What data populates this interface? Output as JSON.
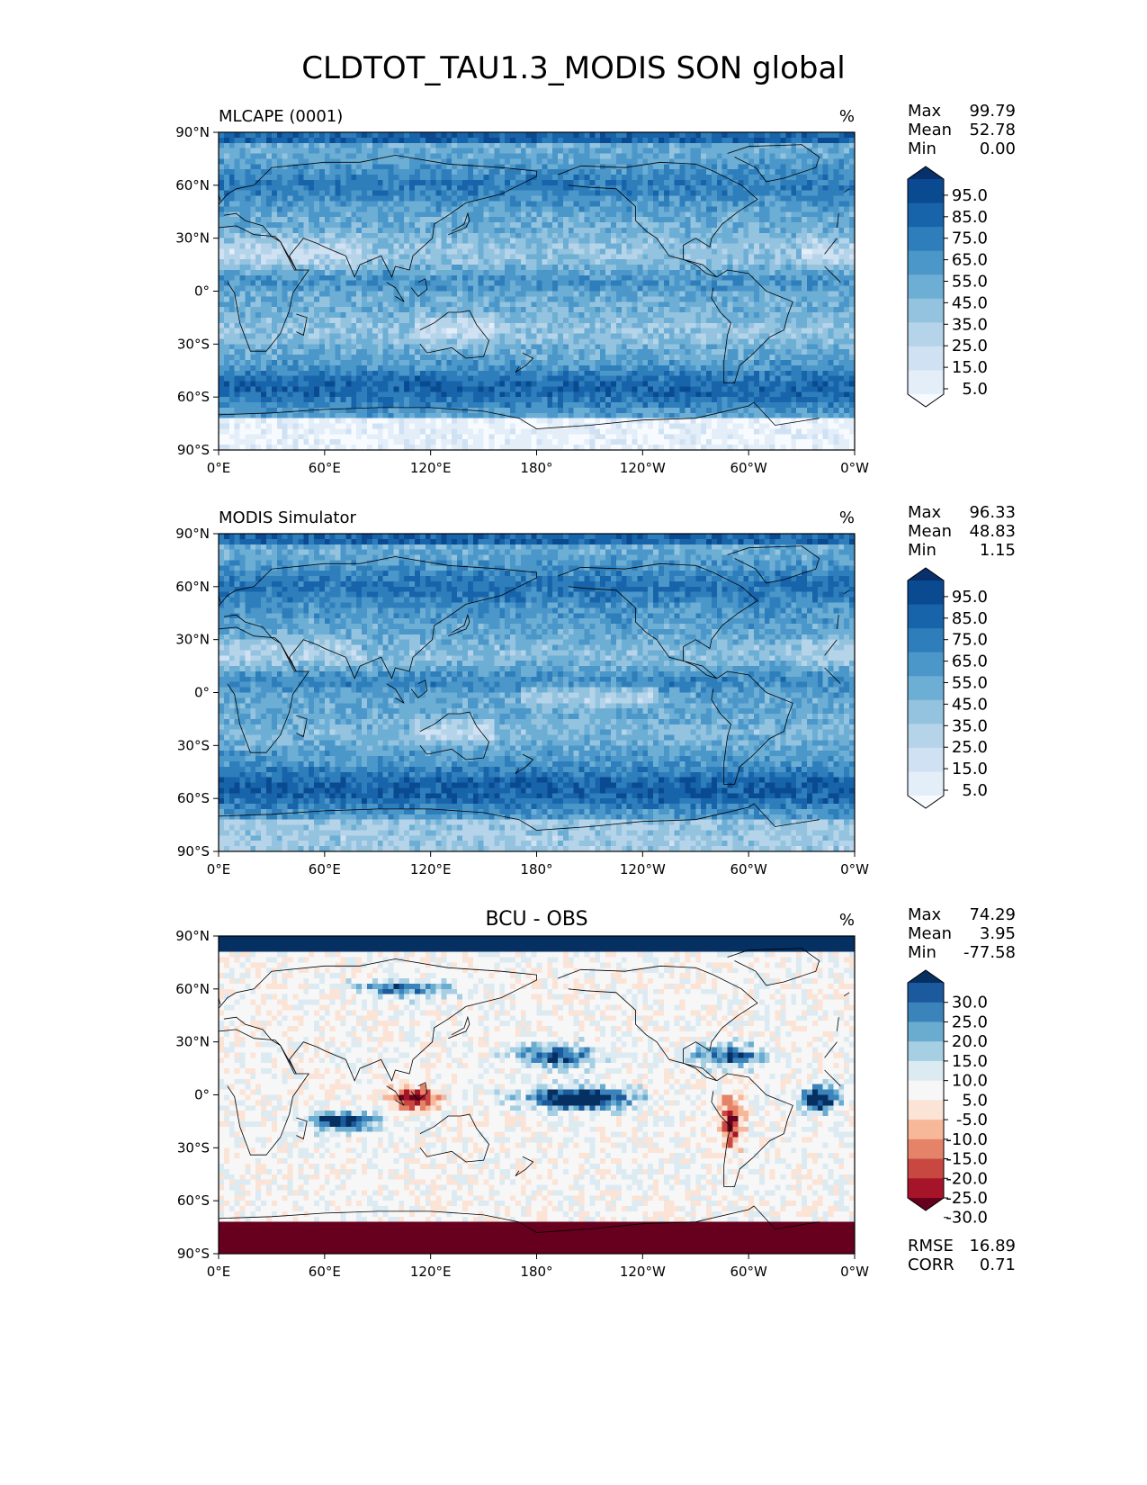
{
  "figure": {
    "title": "CLDTOT_TAU1.3_MODIS SON global"
  },
  "colors": {
    "blues": [
      "#f7fbff",
      "#e3eef9",
      "#cfe1f2",
      "#b5d4e9",
      "#93c3df",
      "#6daed5",
      "#4b97c9",
      "#2f7ebc",
      "#1864aa",
      "#0a4a90",
      "#08306b"
    ],
    "diverging": [
      "#67001f",
      "#a51429",
      "#c94741",
      "#e58368",
      "#f7b799",
      "#fbe3d6",
      "#f7f7f7",
      "#dceaf2",
      "#a7cfe4",
      "#6aacd0",
      "#3a84bb",
      "#1b5a9c",
      "#053061"
    ],
    "coastline": "#000000"
  },
  "chart_data": [
    {
      "type": "heatmap",
      "title": "MLCAPE (0001)",
      "units": "%",
      "xticks": [
        "0°E",
        "60°E",
        "120°E",
        "180°",
        "120°W",
        "60°W",
        "0°W"
      ],
      "yticks": [
        "90°N",
        "60°N",
        "30°N",
        "0°",
        "30°S",
        "60°S",
        "90°S"
      ],
      "xlim": [
        0,
        360
      ],
      "ylim": [
        -90,
        90
      ],
      "stats": [
        {
          "label": "Max",
          "value": "99.79"
        },
        {
          "label": "Mean",
          "value": "52.78"
        },
        {
          "label": "Min",
          "value": "0.00"
        }
      ],
      "colorbar": {
        "palette": "blues",
        "extend": "both",
        "labels": [
          "95.0",
          "85.0",
          "75.0",
          "65.0",
          "55.0",
          "45.0",
          "35.0",
          "25.0",
          "15.0",
          "5.0"
        ]
      }
    },
    {
      "type": "heatmap",
      "title": "MODIS Simulator",
      "units": "%",
      "xticks": [
        "0°E",
        "60°E",
        "120°E",
        "180°",
        "120°W",
        "60°W",
        "0°W"
      ],
      "yticks": [
        "90°N",
        "60°N",
        "30°N",
        "0°",
        "30°S",
        "60°S",
        "90°S"
      ],
      "xlim": [
        0,
        360
      ],
      "ylim": [
        -90,
        90
      ],
      "stats": [
        {
          "label": "Max",
          "value": "96.33"
        },
        {
          "label": "Mean",
          "value": "48.83"
        },
        {
          "label": "Min",
          "value": "1.15"
        }
      ],
      "colorbar": {
        "palette": "blues",
        "extend": "both",
        "labels": [
          "95.0",
          "85.0",
          "75.0",
          "65.0",
          "55.0",
          "45.0",
          "35.0",
          "25.0",
          "15.0",
          "5.0"
        ]
      }
    },
    {
      "type": "heatmap",
      "title": "BCU - OBS",
      "units": "%",
      "xticks": [
        "0°E",
        "60°E",
        "120°E",
        "180°",
        "120°W",
        "60°W",
        "0°W"
      ],
      "yticks": [
        "90°N",
        "60°N",
        "30°N",
        "0°",
        "30°S",
        "60°S",
        "90°S"
      ],
      "xlim": [
        0,
        360
      ],
      "ylim": [
        -90,
        90
      ],
      "stats": [
        {
          "label": "Max",
          "value": "74.29"
        },
        {
          "label": "Mean",
          "value": "3.95"
        },
        {
          "label": "Min",
          "value": "-77.58"
        }
      ],
      "colorbar": {
        "palette": "diverging",
        "extend": "both",
        "labels": [
          "30.0",
          "25.0",
          "20.0",
          "15.0",
          "10.0",
          "5.0",
          "-5.0",
          "-10.0",
          "-15.0",
          "-20.0",
          "-25.0",
          "-30.0"
        ]
      },
      "metrics": [
        {
          "label": "RMSE",
          "value": "16.89"
        },
        {
          "label": "CORR",
          "value": "0.71"
        }
      ]
    }
  ]
}
